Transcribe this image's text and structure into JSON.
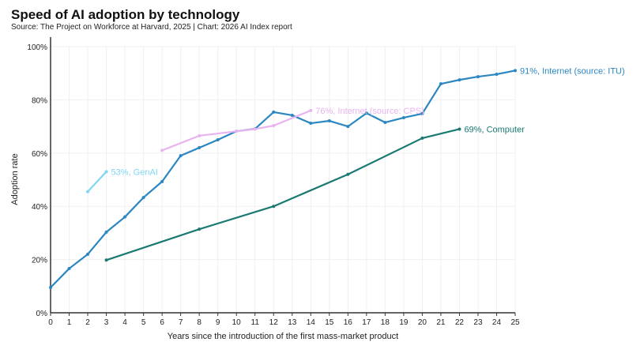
{
  "chart_data": {
    "type": "line",
    "title": "Speed of AI adoption by technology",
    "subtitle": "Source: The Project on Workforce at Harvard, 2025 | Chart: 2026 AI Index report",
    "xlabel": "Years since the introduction of the first mass-market product",
    "ylabel": "Adoption rate",
    "xlim": [
      0,
      25
    ],
    "ylim": [
      0,
      100
    ],
    "xticks": [
      0,
      1,
      2,
      3,
      4,
      5,
      6,
      7,
      8,
      9,
      10,
      11,
      12,
      13,
      14,
      15,
      16,
      17,
      18,
      19,
      20,
      21,
      22,
      23,
      24,
      25
    ],
    "yticks": [
      "0%",
      "20%",
      "40%",
      "60%",
      "80%",
      "100%"
    ],
    "grid": true,
    "series": [
      {
        "name": "Internet (source: ITU)",
        "label": "91%, Internet (source: ITU)",
        "color": "#2b87c1",
        "x": [
          0,
          1,
          2,
          3,
          4,
          5,
          6,
          7,
          8,
          9,
          10,
          11,
          12,
          13,
          14,
          15,
          16,
          17,
          18,
          19,
          20,
          21,
          22,
          23,
          24,
          25
        ],
        "y": [
          9.5,
          16.6,
          22,
          30.3,
          36,
          43.3,
          49.3,
          59,
          62,
          65,
          68.2,
          69.1,
          75.4,
          74.2,
          71.2,
          72.1,
          70,
          75,
          71.5,
          73.3,
          74.8,
          86,
          87.5,
          88.7,
          89.6,
          91
        ]
      },
      {
        "name": "Internet (source: CPS)",
        "label": "76%, Internet (source: CPS)",
        "color": "#e9b3f0",
        "x": [
          6,
          8,
          10,
          11,
          12,
          14
        ],
        "y": [
          61,
          66.5,
          68.2,
          69,
          70.3,
          76
        ]
      },
      {
        "name": "GenAI",
        "label": "53%, GenAI",
        "color": "#7fd6f5",
        "x": [
          2,
          3
        ],
        "y": [
          45.5,
          53
        ]
      },
      {
        "name": "Computer",
        "label": "69%, Computer",
        "color": "#1a7a72",
        "x": [
          3,
          8,
          12,
          16,
          20,
          22
        ],
        "y": [
          19.8,
          31.4,
          40,
          52,
          65.6,
          69
        ]
      }
    ]
  }
}
